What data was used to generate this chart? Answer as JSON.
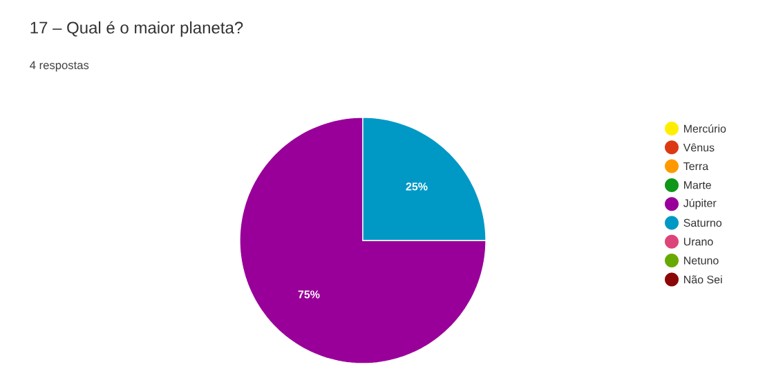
{
  "chart_data": {
    "type": "pie",
    "title": "17 – Qual é o maior planeta?",
    "subtitle": "4 respostas",
    "categories": [
      "Mercúrio",
      "Vênus",
      "Terra",
      "Marte",
      "Júpiter",
      "Saturno",
      "Urano",
      "Netuno",
      "Não Sei"
    ],
    "values": [
      0,
      0,
      0,
      0,
      75,
      25,
      0,
      0,
      0
    ],
    "colors": [
      "#ffee00",
      "#dc3912",
      "#ff9900",
      "#109618",
      "#990099",
      "#0099c6",
      "#dd4477",
      "#66aa00",
      "#8b0707"
    ],
    "value_labels": [
      null,
      null,
      null,
      null,
      "75%",
      "25%",
      null,
      null,
      null
    ],
    "legend": "right"
  }
}
